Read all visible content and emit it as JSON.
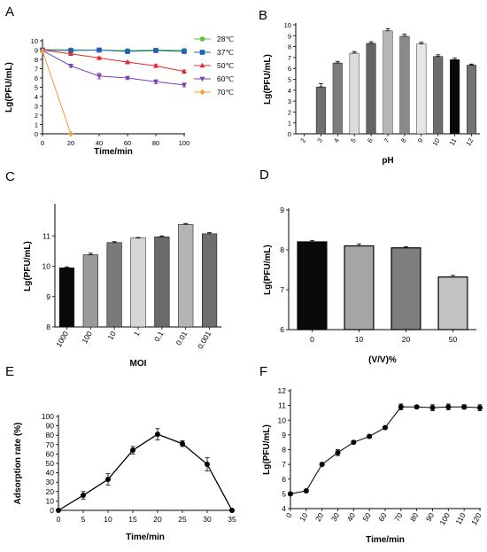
{
  "chart_data": [
    {
      "panel": "A",
      "type": "line",
      "xlabel": "Time/min",
      "ylabel": "Lg(PFU/mL)",
      "xlim": [
        0,
        100
      ],
      "ylim": [
        0,
        10
      ],
      "x_ticks": [
        0,
        20,
        40,
        60,
        80,
        100
      ],
      "y_ticks": [
        0,
        1,
        2,
        3,
        4,
        5,
        6,
        7,
        8,
        9,
        10
      ],
      "legend_position": "right",
      "series": [
        {
          "name": "28℃",
          "color": "#5cc23b",
          "marker": "circle",
          "x": [
            0,
            20,
            40,
            60,
            80,
            100
          ],
          "y": [
            9.05,
            9.02,
            9.0,
            8.95,
            9.0,
            8.98
          ],
          "err": [
            0.1,
            0.1,
            0.1,
            0.1,
            0.1,
            0.1
          ]
        },
        {
          "name": "37℃",
          "color": "#1f5fb5",
          "marker": "square",
          "x": [
            0,
            20,
            40,
            60,
            80,
            100
          ],
          "y": [
            9.0,
            8.95,
            9.0,
            8.85,
            8.95,
            8.85
          ],
          "err": [
            0.1,
            0.1,
            0.1,
            0.1,
            0.1,
            0.1
          ]
        },
        {
          "name": "50℃",
          "color": "#e0292b",
          "marker": "triangle-up",
          "x": [
            0,
            20,
            40,
            60,
            80,
            100
          ],
          "y": [
            9.0,
            8.6,
            8.15,
            7.7,
            7.3,
            6.7
          ],
          "err": [
            0.1,
            0.1,
            0.1,
            0.1,
            0.15,
            0.15
          ]
        },
        {
          "name": "60℃",
          "color": "#7b3fb3",
          "marker": "triangle-down",
          "x": [
            0,
            20,
            40,
            60,
            80,
            100
          ],
          "y": [
            8.95,
            7.3,
            6.2,
            6.0,
            5.6,
            5.25
          ],
          "err": [
            0.15,
            0.15,
            0.3,
            0.15,
            0.2,
            0.2
          ]
        },
        {
          "name": "70℃",
          "color": "#f39c3a",
          "marker": "diamond",
          "x": [
            0,
            20
          ],
          "y": [
            8.9,
            0.0
          ],
          "err": [
            0.1,
            0
          ]
        }
      ]
    },
    {
      "panel": "B",
      "type": "bar",
      "xlabel": "pH",
      "ylabel": "Lg(PFU/mL)",
      "ylim": [
        0,
        10
      ],
      "y_ticks": [
        0,
        1,
        2,
        3,
        4,
        5,
        6,
        7,
        8,
        9,
        10
      ],
      "categories": [
        "2",
        "3",
        "4",
        "5",
        "6",
        "7",
        "8",
        "9",
        "10",
        "11",
        "12"
      ],
      "values": [
        0,
        4.3,
        6.5,
        7.4,
        8.3,
        9.45,
        8.95,
        8.25,
        7.1,
        6.8,
        6.3
      ],
      "errors": [
        0,
        0.3,
        0.15,
        0.15,
        0.15,
        0.2,
        0.2,
        0.15,
        0.15,
        0.15,
        0.1
      ],
      "colors": [
        "#707070",
        "#707070",
        "#7c7c7c",
        "#dcdcdc",
        "#646464",
        "#b7b7b7",
        "#8a8a8a",
        "#e6e6e6",
        "#6c6c6c",
        "#080808",
        "#727272"
      ]
    },
    {
      "panel": "C",
      "type": "bar",
      "xlabel": "MOI",
      "ylabel": "Lg(PFU/mL)",
      "ylim": [
        8,
        12
      ],
      "y_ticks": [
        8,
        9,
        10,
        11
      ],
      "categories": [
        "1000",
        "100",
        "10",
        "1",
        "0.1",
        "0.01",
        "0.001"
      ],
      "values": [
        9.95,
        10.38,
        10.78,
        10.93,
        10.97,
        11.38,
        11.07
      ],
      "errors": [
        0.03,
        0.05,
        0.03,
        0.02,
        0.03,
        0.03,
        0.04
      ],
      "colors": [
        "#0a0a0a",
        "#9a9a9a",
        "#7a7a7a",
        "#d6d6d6",
        "#6a6a6a",
        "#b4b4b4",
        "#6e6e6e"
      ]
    },
    {
      "panel": "D",
      "type": "bar",
      "xlabel": "(V/V)%",
      "ylabel": "Lg(PFU/mL)",
      "ylim": [
        6,
        9
      ],
      "y_ticks": [
        6,
        7,
        8,
        9
      ],
      "categories": [
        "0",
        "10",
        "20",
        "50"
      ],
      "values": [
        8.2,
        8.1,
        8.05,
        7.32
      ],
      "errors": [
        0.03,
        0.05,
        0.03,
        0.04
      ],
      "colors": [
        "#0a0a0a",
        "#a5a5a5",
        "#7e7e7e",
        "#c2c2c2"
      ]
    },
    {
      "panel": "E",
      "type": "line",
      "xlabel": "Time/min",
      "ylabel": "Adsorption rate (%)",
      "xlim": [
        0,
        35
      ],
      "ylim": [
        0,
        100
      ],
      "x_ticks": [
        0,
        5,
        10,
        15,
        20,
        25,
        30,
        35
      ],
      "y_ticks": [
        0,
        10,
        20,
        30,
        40,
        50,
        60,
        70,
        80,
        90,
        100
      ],
      "series": [
        {
          "x": [
            0,
            5,
            10,
            15,
            20,
            25,
            30,
            35
          ],
          "y": [
            0,
            16,
            33,
            64,
            81,
            71,
            49,
            0
          ],
          "err": [
            0,
            4,
            6,
            4,
            6,
            3,
            7,
            0
          ],
          "color": "#000000",
          "marker": "circle"
        }
      ]
    },
    {
      "panel": "F",
      "type": "line",
      "xlabel": "Time/min",
      "ylabel": "Lg(PFU/mL)",
      "xlim": [
        0,
        120
      ],
      "ylim": [
        4,
        12
      ],
      "x_ticks": [
        0,
        10,
        20,
        30,
        40,
        50,
        60,
        70,
        80,
        90,
        100,
        110,
        120
      ],
      "y_ticks": [
        4,
        5,
        6,
        7,
        8,
        9,
        10,
        11,
        12
      ],
      "series": [
        {
          "x": [
            0,
            10,
            20,
            30,
            40,
            50,
            60,
            70,
            80,
            90,
            100,
            110,
            120
          ],
          "y": [
            5.0,
            5.2,
            7.0,
            7.8,
            8.5,
            8.9,
            9.5,
            10.9,
            10.9,
            10.85,
            10.9,
            10.9,
            10.85
          ],
          "err": [
            0.1,
            0.1,
            0.1,
            0.2,
            0.1,
            0.1,
            0.1,
            0.2,
            0.1,
            0.2,
            0.2,
            0.15,
            0.2
          ],
          "color": "#000000",
          "marker": "circle"
        }
      ]
    }
  ]
}
